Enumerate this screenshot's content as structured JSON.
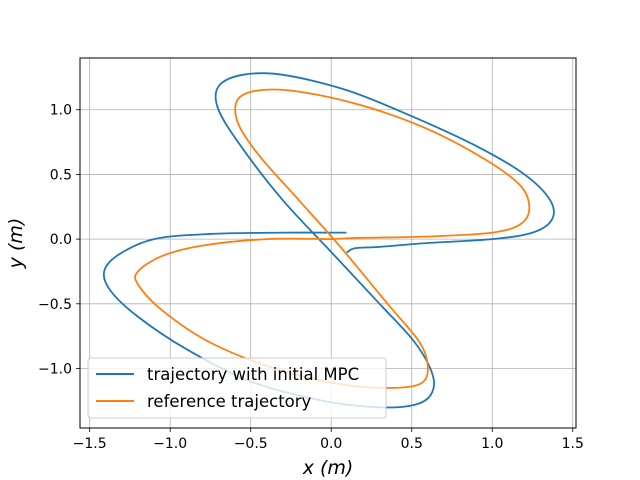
{
  "chart_data": {
    "type": "line",
    "title": "",
    "xlabel": "x (m)",
    "ylabel": "y (m)",
    "xlim": [
      -1.56,
      1.52
    ],
    "ylim": [
      -1.46,
      1.4
    ],
    "grid": true,
    "xticks": [
      -1.5,
      -1.0,
      -0.5,
      0.0,
      0.5,
      1.0,
      1.5
    ],
    "xtick_labels": [
      "−1.5",
      "−1.0",
      "−0.5",
      "0.0",
      "0.5",
      "1.0",
      "1.5"
    ],
    "yticks": [
      -1.0,
      -0.5,
      0.0,
      0.5,
      1.0
    ],
    "ytick_labels": [
      "−1.0",
      "−0.5",
      "0.0",
      "0.5",
      "1.0"
    ],
    "legend_position": "bottom-left",
    "series": [
      {
        "name": "trajectory with initial MPC",
        "color": "#1f77b4",
        "points": [
          [
            0.09,
            0.05
          ],
          [
            -0.3,
            0.05
          ],
          [
            -0.75,
            0.04
          ],
          [
            -1.1,
            0.0
          ],
          [
            -1.32,
            -0.12
          ],
          [
            -1.41,
            -0.25
          ],
          [
            -1.37,
            -0.4
          ],
          [
            -1.2,
            -0.6
          ],
          [
            -0.9,
            -0.85
          ],
          [
            -0.5,
            -1.1
          ],
          [
            -0.05,
            -1.25
          ],
          [
            0.3,
            -1.3
          ],
          [
            0.52,
            -1.28
          ],
          [
            0.62,
            -1.2
          ],
          [
            0.63,
            -1.05
          ],
          [
            0.52,
            -0.8
          ],
          [
            0.3,
            -0.5
          ],
          [
            0.0,
            -0.1
          ],
          [
            -0.3,
            0.3
          ],
          [
            -0.55,
            0.7
          ],
          [
            -0.7,
            1.0
          ],
          [
            -0.7,
            1.18
          ],
          [
            -0.55,
            1.27
          ],
          [
            -0.3,
            1.27
          ],
          [
            0.1,
            1.15
          ],
          [
            0.5,
            0.95
          ],
          [
            0.9,
            0.72
          ],
          [
            1.2,
            0.5
          ],
          [
            1.36,
            0.3
          ],
          [
            1.37,
            0.15
          ],
          [
            1.25,
            0.05
          ],
          [
            1.0,
            0.0
          ],
          [
            0.6,
            -0.03
          ],
          [
            0.3,
            -0.06
          ],
          [
            0.15,
            -0.07
          ],
          [
            0.1,
            -0.1
          ]
        ]
      },
      {
        "name": "reference trajectory",
        "color": "#ff7f0e",
        "points": [
          [
            0.0,
            0.0
          ],
          [
            -0.4,
            0.0
          ],
          [
            -0.8,
            -0.05
          ],
          [
            -1.05,
            -0.13
          ],
          [
            -1.2,
            -0.25
          ],
          [
            -1.2,
            -0.35
          ],
          [
            -1.05,
            -0.55
          ],
          [
            -0.75,
            -0.8
          ],
          [
            -0.35,
            -1.0
          ],
          [
            0.05,
            -1.12
          ],
          [
            0.35,
            -1.15
          ],
          [
            0.55,
            -1.12
          ],
          [
            0.6,
            -1.0
          ],
          [
            0.55,
            -0.8
          ],
          [
            0.35,
            -0.5
          ],
          [
            0.05,
            -0.05
          ],
          [
            -0.2,
            0.3
          ],
          [
            -0.45,
            0.65
          ],
          [
            -0.58,
            0.9
          ],
          [
            -0.58,
            1.08
          ],
          [
            -0.45,
            1.15
          ],
          [
            -0.2,
            1.14
          ],
          [
            0.2,
            1.03
          ],
          [
            0.6,
            0.85
          ],
          [
            0.95,
            0.62
          ],
          [
            1.17,
            0.42
          ],
          [
            1.23,
            0.25
          ],
          [
            1.18,
            0.12
          ],
          [
            1.0,
            0.05
          ],
          [
            0.6,
            0.02
          ],
          [
            0.2,
            0.01
          ],
          [
            0.0,
            0.0
          ]
        ]
      }
    ]
  }
}
